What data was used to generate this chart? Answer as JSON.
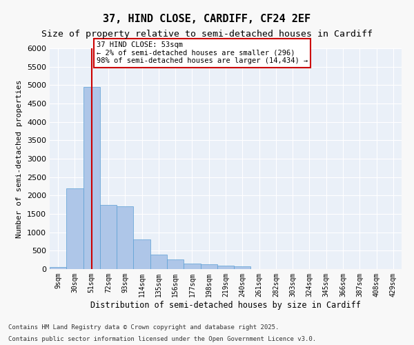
{
  "title_line1": "37, HIND CLOSE, CARDIFF, CF24 2EF",
  "title_line2": "Size of property relative to semi-detached houses in Cardiff",
  "xlabel": "Distribution of semi-detached houses by size in Cardiff",
  "ylabel": "Number of semi-detached properties",
  "categories": [
    "9sqm",
    "30sqm",
    "51sqm",
    "72sqm",
    "93sqm",
    "114sqm",
    "135sqm",
    "156sqm",
    "177sqm",
    "198sqm",
    "219sqm",
    "240sqm",
    "261sqm",
    "282sqm",
    "303sqm",
    "324sqm",
    "345sqm",
    "366sqm",
    "387sqm",
    "408sqm",
    "429sqm"
  ],
  "values": [
    50,
    2200,
    4950,
    1750,
    1700,
    800,
    400,
    270,
    150,
    130,
    90,
    70,
    0,
    0,
    0,
    0,
    0,
    0,
    0,
    0,
    0
  ],
  "bar_color": "#aec6e8",
  "bar_edge_color": "#5a9fd4",
  "vline_x_index": 2,
  "vline_color": "#cc0000",
  "annotation_box_color": "#cc0000",
  "annotation_text_line1": "37 HIND CLOSE: 53sqm",
  "annotation_text_line2": "← 2% of semi-detached houses are smaller (296)",
  "annotation_text_line3": "98% of semi-detached houses are larger (14,434) →",
  "ylim": [
    0,
    6000
  ],
  "yticks": [
    0,
    500,
    1000,
    1500,
    2000,
    2500,
    3000,
    3500,
    4000,
    4500,
    5000,
    5500,
    6000
  ],
  "bg_color": "#eaf0f8",
  "grid_color": "#ffffff",
  "footnote_line1": "Contains HM Land Registry data © Crown copyright and database right 2025.",
  "footnote_line2": "Contains public sector information licensed under the Open Government Licence v3.0."
}
